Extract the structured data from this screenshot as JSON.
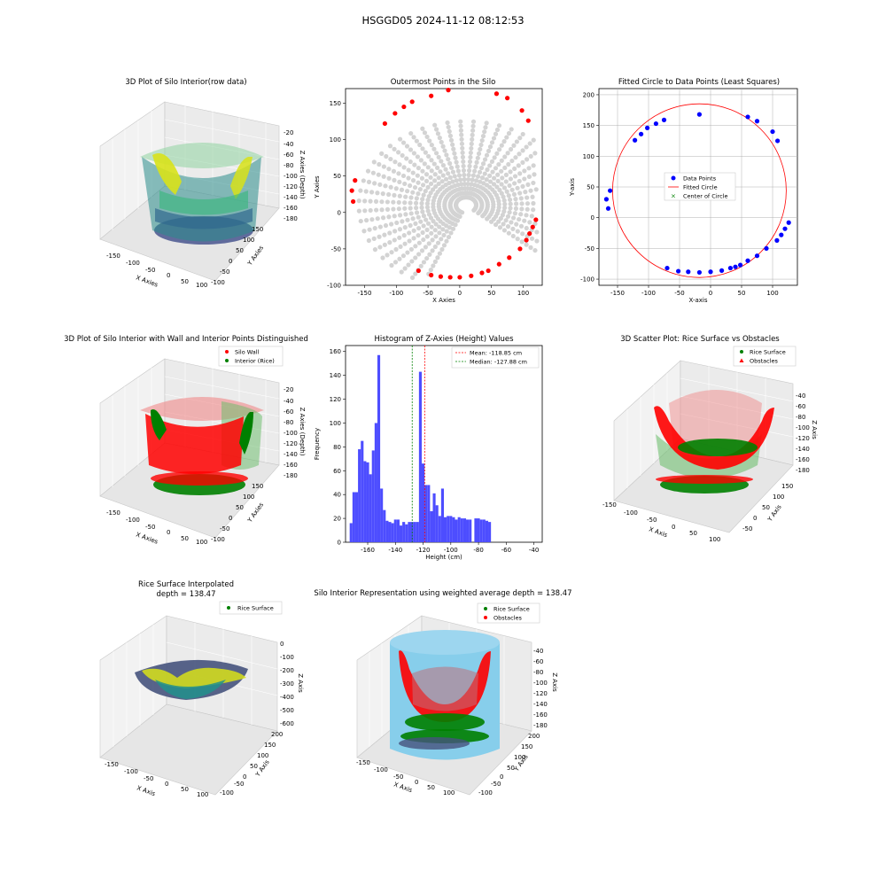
{
  "figure": {
    "suptitle": "HSGGD05 2024-11-12 08:12:53"
  },
  "chart_data": [
    {
      "id": "p1",
      "type": "scatter3d",
      "title": "3D Plot of Silo Interior(row data)",
      "xlabel": "X Axies",
      "ylabel": "Y Axies",
      "zlabel": "Z Axies (Depth)",
      "xticks": [
        "-150",
        "-100",
        "-50",
        "0",
        "50",
        "100"
      ],
      "yticks": [
        "150",
        "100",
        "50",
        "0",
        "-50",
        "-100"
      ],
      "zticks": [
        "-20",
        "-40",
        "-60",
        "-80",
        "-100",
        "-120",
        "-140",
        "-160",
        "-180"
      ],
      "colormap": "viridis"
    },
    {
      "id": "p2",
      "type": "scatter",
      "title": "Outermost Points in the Silo",
      "xlabel": "X Axies",
      "ylabel": "Y Axies",
      "xlim": [
        -180,
        130
      ],
      "ylim": [
        -100,
        170
      ],
      "xticks": [
        -150,
        -100,
        -50,
        0,
        50,
        100
      ],
      "yticks": [
        -100,
        -50,
        0,
        50,
        100,
        150
      ],
      "all_points_color": "#d3d3d3",
      "outer_color": "#ff0000",
      "outer_points": [
        [
          -18,
          168
        ],
        [
          -45,
          160
        ],
        [
          -75,
          152
        ],
        [
          -88,
          145
        ],
        [
          -102,
          136
        ],
        [
          -118,
          122
        ],
        [
          -165,
          44
        ],
        [
          -170,
          30
        ],
        [
          -168,
          15
        ],
        [
          -65,
          -80
        ],
        [
          -45,
          -86
        ],
        [
          -30,
          -88
        ],
        [
          -15,
          -89
        ],
        [
          0,
          -89
        ],
        [
          18,
          -87
        ],
        [
          35,
          -83
        ],
        [
          45,
          -80
        ],
        [
          62,
          -71
        ],
        [
          78,
          -62
        ],
        [
          95,
          -50
        ],
        [
          105,
          -38
        ],
        [
          110,
          -29
        ],
        [
          115,
          -20
        ],
        [
          120,
          -10
        ],
        [
          108,
          126
        ],
        [
          98,
          140
        ],
        [
          75,
          157
        ],
        [
          58,
          163
        ]
      ]
    },
    {
      "id": "p3",
      "type": "scatter",
      "title": "Fitted Circle to Data Points (Least Squares)",
      "xlabel": "X-axis",
      "ylabel": "Y-axis",
      "xlim": [
        -180,
        140
      ],
      "ylim": [
        -110,
        210
      ],
      "xticks": [
        -150,
        -100,
        -50,
        0,
        50,
        100
      ],
      "yticks": [
        -100,
        -50,
        0,
        50,
        100,
        150,
        200
      ],
      "grid": true,
      "legend": [
        "Data Points",
        "Fitted Circle",
        "Center of Circle"
      ],
      "legend_position": "center",
      "circle_center": [
        -18,
        44
      ],
      "circle_radius": 140,
      "points": [
        [
          -18,
          168
        ],
        [
          -75,
          159
        ],
        [
          -88,
          153
        ],
        [
          -102,
          146
        ],
        [
          -112,
          136
        ],
        [
          -122,
          126
        ],
        [
          -162,
          44
        ],
        [
          -168,
          30
        ],
        [
          -165,
          15
        ],
        [
          -70,
          -82
        ],
        [
          -52,
          -87
        ],
        [
          -36,
          -88
        ],
        [
          -18,
          -89
        ],
        [
          0,
          -88
        ],
        [
          18,
          -86
        ],
        [
          32,
          -82
        ],
        [
          40,
          -80
        ],
        [
          48,
          -77
        ],
        [
          60,
          -70
        ],
        [
          75,
          -62
        ],
        [
          90,
          -50
        ],
        [
          107,
          -37
        ],
        [
          114,
          -28
        ],
        [
          120,
          -18
        ],
        [
          126,
          -8
        ],
        [
          108,
          125
        ],
        [
          100,
          140
        ],
        [
          75,
          157
        ],
        [
          60,
          164
        ]
      ]
    },
    {
      "id": "p4",
      "type": "scatter3d",
      "title": "3D Plot of Silo Interior with Wall and Interior Points Distinguished",
      "xlabel": "X Axies",
      "ylabel": "Y Axies",
      "zlabel": "Z Axies (Depth)",
      "xticks": [
        "-150",
        "-100",
        "-50",
        "0",
        "50",
        "100"
      ],
      "yticks": [
        "150",
        "100",
        "50",
        "0",
        "-50",
        "-100"
      ],
      "zticks": [
        "-20",
        "-40",
        "-60",
        "-80",
        "-100",
        "-120",
        "-140",
        "-160",
        "-180"
      ],
      "legend": [
        "Silo Wall",
        "Interior (Rice)"
      ],
      "legend_position": "top-right"
    },
    {
      "id": "p5",
      "type": "bar",
      "title": "Histogram of Z-Axies (Height) Values",
      "xlabel": "Height (cm)",
      "ylabel": "Frequency",
      "xlim": [
        -176,
        -34
      ],
      "ylim": [
        0,
        165
      ],
      "xticks": [
        -160,
        -140,
        -120,
        -100,
        -80,
        -60,
        -40
      ],
      "yticks": [
        0,
        20,
        40,
        60,
        80,
        100,
        120,
        140,
        160
      ],
      "bar_color": "#4d4dff",
      "bin_start": -173,
      "bin_width": 2,
      "values": [
        16,
        42,
        42,
        78,
        85,
        68,
        67,
        57,
        77,
        100,
        157,
        45,
        27,
        18,
        17,
        16,
        19,
        19,
        14,
        17,
        15,
        17,
        17,
        17,
        17,
        143,
        66,
        48,
        48,
        26,
        41,
        31,
        22,
        45,
        21,
        22,
        22,
        21,
        19,
        21,
        20,
        20,
        19,
        19,
        0,
        20,
        20,
        19,
        19,
        18,
        17
      ],
      "lines": [
        {
          "label": "Mean: -118.85 cm",
          "x": -118.85,
          "color": "#ff0000"
        },
        {
          "label": "Median: -127.88 cm",
          "x": -127.88,
          "color": "#008000"
        }
      ],
      "legend_position": "top-right"
    },
    {
      "id": "p6",
      "type": "scatter3d",
      "title": "3D Scatter Plot: Rice Surface vs Obstacles",
      "xlabel": "X Axis",
      "ylabel": "Y Axis",
      "zlabel": "Z Axis",
      "xticks": [
        "-150",
        "-100",
        "-50",
        "0",
        "50",
        "100"
      ],
      "yticks": [
        "150",
        "100",
        "50",
        "0",
        "-50"
      ],
      "zticks": [
        "-40",
        "-60",
        "-80",
        "-100",
        "-120",
        "-140",
        "-160",
        "-180"
      ],
      "legend": [
        "Rice Surface",
        "Obstacles"
      ],
      "legend_position": "top-right"
    },
    {
      "id": "p7",
      "type": "surface3d",
      "title": "Rice Surface Interpolated\ndepth = 138.47",
      "xlabel": "X Axis",
      "ylabel": "Y Axis",
      "zlabel": "Z Axis",
      "xticks": [
        "-150",
        "-100",
        "-50",
        "0",
        "50",
        "100"
      ],
      "yticks": [
        "200",
        "150",
        "100",
        "50",
        "0",
        "-50",
        "-100"
      ],
      "zticks": [
        "0",
        "-100",
        "-200",
        "-300",
        "-400",
        "-500",
        "-600"
      ],
      "legend": [
        "Rice Surface"
      ],
      "legend_position": "top-right"
    },
    {
      "id": "p8",
      "type": "surface3d",
      "title": "Silo Interior Representation using weighted average depth = 138.47",
      "xlabel": "X Axis",
      "ylabel": "Y Axis",
      "zlabel": "Z Axis",
      "xticks": [
        "-150",
        "-100",
        "-50",
        "0",
        "50",
        "100"
      ],
      "yticks": [
        "200",
        "150",
        "100",
        "50",
        "0",
        "-50",
        "-100"
      ],
      "zticks": [
        "-40",
        "-60",
        "-80",
        "-100",
        "-120",
        "-140",
        "-160",
        "-180"
      ],
      "legend": [
        "Rice Surface",
        "Obstacles"
      ],
      "legend_position": "top-center"
    }
  ]
}
